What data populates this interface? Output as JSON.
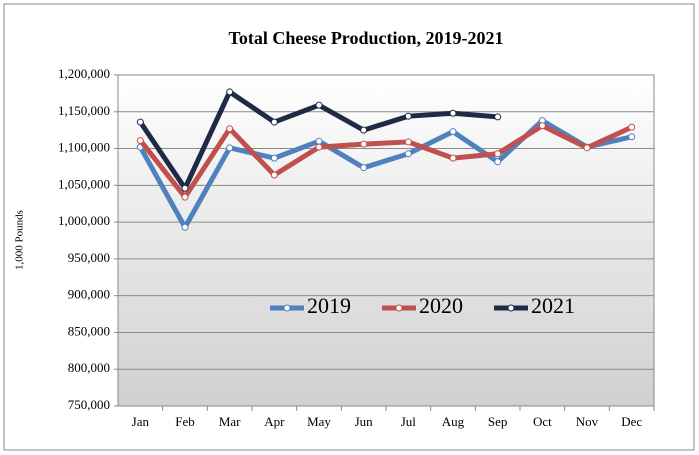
{
  "chart_data": {
    "type": "line",
    "title": "Total Cheese Production, 2019-2021",
    "y_label": "1,000 Pounds",
    "categories": [
      "Jan",
      "Feb",
      "Mar",
      "Apr",
      "May",
      "Jun",
      "Jul",
      "Aug",
      "Sep",
      "Oct",
      "Nov",
      "Dec"
    ],
    "series": [
      {
        "name": "2019",
        "color": "#4f81bd",
        "values": [
          1102000,
          993000,
          1101000,
          1087000,
          1110000,
          1074000,
          1093000,
          1123000,
          1082000,
          1138000,
          1102000,
          1116000
        ]
      },
      {
        "name": "2020",
        "color": "#c0504d",
        "values": [
          1111000,
          1034000,
          1127000,
          1064000,
          1102000,
          1106000,
          1109000,
          1087000,
          1093000,
          1131000,
          1101000,
          1129000
        ]
      },
      {
        "name": "2021",
        "color": "#1f2a44",
        "values": [
          1136000,
          1046000,
          1177000,
          1136000,
          1159000,
          1125000,
          1144000,
          1148000,
          1143000,
          null,
          null,
          null
        ]
      }
    ],
    "ylim": [
      750000,
      1200000
    ],
    "yticks": [
      {
        "value": 750000,
        "label": "750,000"
      },
      {
        "value": 800000,
        "label": "800,000"
      },
      {
        "value": 850000,
        "label": "850,000"
      },
      {
        "value": 900000,
        "label": "900,000"
      },
      {
        "value": 950000,
        "label": "950,000"
      },
      {
        "value": 1000000,
        "label": "1,000,000"
      },
      {
        "value": 1050000,
        "label": "1,050,000"
      },
      {
        "value": 1100000,
        "label": "1,100,000"
      },
      {
        "value": 1150000,
        "label": "1,150,000"
      },
      {
        "value": 1200000,
        "label": "1,200,000"
      }
    ],
    "grid": true,
    "legend": "lower-center"
  }
}
